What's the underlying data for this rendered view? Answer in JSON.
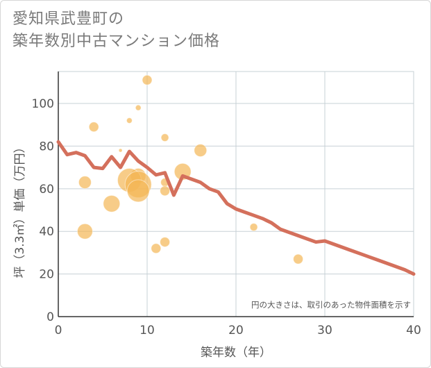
{
  "title": {
    "line1": "愛知県武豊町の",
    "line2": "築年数別中古マンション価格"
  },
  "colors": {
    "line": "#d4705c",
    "bubble": "#f3b755",
    "grid": "#c7d0d6",
    "plot_bg": "#ffffff"
  },
  "chart_data": {
    "type": "scatter",
    "xlabel": "築年数（年）",
    "ylabel": "坪（3.3㎡）単価（万円）",
    "xlim": [
      0,
      40
    ],
    "ylim": [
      0,
      115
    ],
    "x_ticks": [
      0,
      10,
      20,
      30,
      40
    ],
    "y_ticks": [
      0,
      20,
      40,
      60,
      80,
      100
    ],
    "grid": true,
    "annotation": "円の大きさは、取引のあった物件面積を示す",
    "line_series": {
      "x": [
        0,
        1,
        2,
        3,
        4,
        5,
        6,
        7,
        8,
        9,
        10,
        11,
        12,
        13,
        14,
        15,
        16,
        17,
        18,
        19,
        20,
        21,
        22,
        23,
        24,
        25,
        26,
        27,
        28,
        29,
        30,
        31,
        32,
        33,
        34,
        35,
        36,
        37,
        38,
        39,
        40
      ],
      "y": [
        82,
        76,
        77,
        75.5,
        70,
        69.5,
        75,
        70,
        77.5,
        73,
        70,
        66.5,
        67.5,
        57,
        66,
        64.5,
        63,
        60,
        58.5,
        53,
        50.5,
        49,
        47.5,
        46,
        44,
        41,
        39.5,
        38,
        36.5,
        35,
        35.5,
        34,
        32.5,
        31,
        29.5,
        28,
        26.5,
        25,
        23.5,
        22,
        20
      ]
    },
    "bubbles": [
      {
        "x": 10,
        "y": 111,
        "size": 7
      },
      {
        "x": 9,
        "y": 98,
        "size": 4
      },
      {
        "x": 8,
        "y": 92,
        "size": 4
      },
      {
        "x": 4,
        "y": 89,
        "size": 7
      },
      {
        "x": 12,
        "y": 84,
        "size": 5.5
      },
      {
        "x": 16,
        "y": 78,
        "size": 9
      },
      {
        "x": 7,
        "y": 78,
        "size": 2.5
      },
      {
        "x": 14,
        "y": 68,
        "size": 12
      },
      {
        "x": 9,
        "y": 66,
        "size": 11
      },
      {
        "x": 8,
        "y": 64,
        "size": 17
      },
      {
        "x": 3,
        "y": 63,
        "size": 9
      },
      {
        "x": 12,
        "y": 63,
        "size": 6
      },
      {
        "x": 9,
        "y": 62,
        "size": 19
      },
      {
        "x": 9,
        "y": 59,
        "size": 16
      },
      {
        "x": 12,
        "y": 59,
        "size": 7
      },
      {
        "x": 6,
        "y": 53,
        "size": 12
      },
      {
        "x": 22,
        "y": 42,
        "size": 5.5
      },
      {
        "x": 3,
        "y": 40,
        "size": 11
      },
      {
        "x": 12,
        "y": 35,
        "size": 7
      },
      {
        "x": 11,
        "y": 32,
        "size": 7
      },
      {
        "x": 27,
        "y": 27,
        "size": 7
      }
    ]
  }
}
